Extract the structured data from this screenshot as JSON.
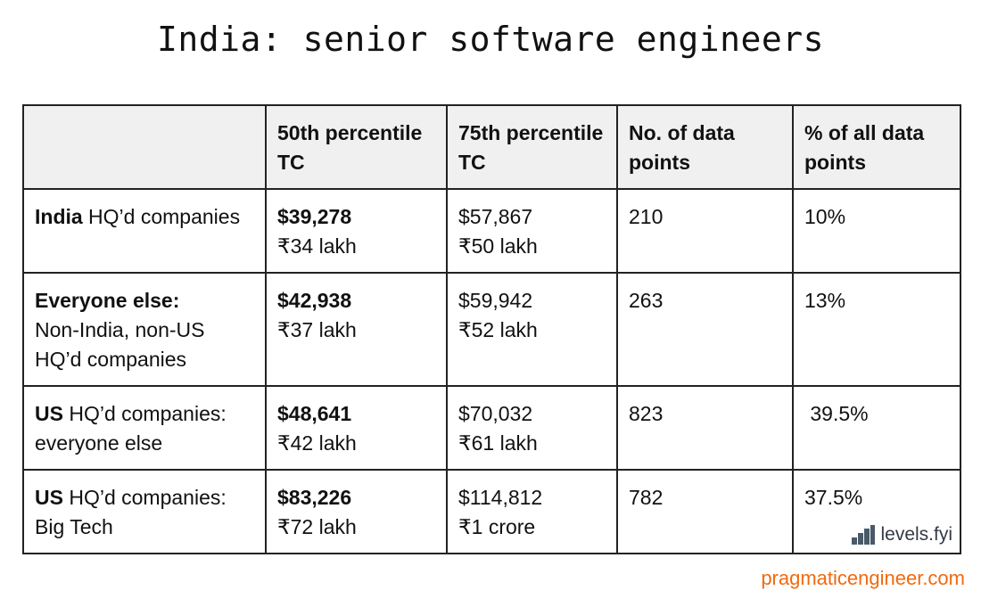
{
  "title": "India: senior software engineers",
  "table": {
    "headers": [
      "",
      "50th percentile TC",
      "75th percentile TC",
      "No. of data points",
      "% of all data points"
    ],
    "rows": [
      {
        "group_bold": "India",
        "group_rest": " HQ’d companies",
        "p50_usd": "$39,278",
        "p50_inr": "₹34 lakh",
        "p75_usd": "$57,867",
        "p75_inr": "₹50 lakh",
        "count": "210",
        "percent": "10%"
      },
      {
        "group_bold": "Everyone else:",
        "group_rest": "Non-India, non-US HQ’d companies",
        "p50_usd": "$42,938",
        "p50_inr": "₹37 lakh",
        "p75_usd": "$59,942",
        "p75_inr": "₹52 lakh",
        "count": "263",
        "percent": "13%"
      },
      {
        "group_bold": "US",
        "group_rest": " HQ’d companies: everyone else",
        "p50_usd": "$48,641",
        "p50_inr": "₹42 lakh",
        "p75_usd": "$70,032",
        "p75_inr": "₹61 lakh",
        "count": "823",
        "percent": " 39.5%"
      },
      {
        "group_bold": "US",
        "group_rest": " HQ’d companies: Big Tech",
        "p50_usd": "$83,226",
        "p50_inr": "₹72 lakh",
        "p75_usd": "$114,812",
        "p75_inr": "₹1 crore",
        "count": "782",
        "percent": "37.5%"
      }
    ]
  },
  "logo": {
    "text": "levels.fyi",
    "icon": "bar-steps-icon"
  },
  "footer": "pragmaticengineer.com",
  "colors": {
    "footer": "#f06a10",
    "header_bg": "#f0f0f0",
    "border": "#222222"
  }
}
